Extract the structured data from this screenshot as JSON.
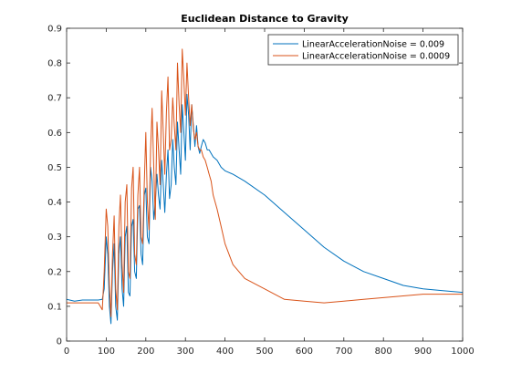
{
  "chart_data": {
    "type": "line",
    "title": "Euclidean Distance to Gravity",
    "xlabel": "",
    "ylabel": "",
    "xlim": [
      0,
      1000
    ],
    "ylim": [
      0,
      0.9
    ],
    "xticks": [
      "0",
      "100",
      "200",
      "300",
      "400",
      "500",
      "600",
      "700",
      "800",
      "900",
      "1000"
    ],
    "yticks": [
      "0",
      "0.1",
      "0.2",
      "0.3",
      "0.4",
      "0.5",
      "0.6",
      "0.7",
      "0.8",
      "0.9"
    ],
    "grid": false,
    "legend_position": "top-right",
    "series": [
      {
        "name": "LinearAccelerationNoise = 0.009",
        "color": "#0072BD",
        "x": [
          0,
          20,
          40,
          60,
          80,
          90,
          95,
          100,
          104,
          108,
          112,
          116,
          120,
          124,
          128,
          132,
          136,
          140,
          144,
          148,
          152,
          156,
          160,
          164,
          168,
          172,
          176,
          180,
          184,
          188,
          192,
          196,
          200,
          204,
          208,
          212,
          216,
          220,
          224,
          228,
          232,
          236,
          240,
          244,
          248,
          252,
          256,
          260,
          264,
          268,
          272,
          276,
          280,
          284,
          288,
          292,
          296,
          300,
          304,
          308,
          312,
          316,
          320,
          324,
          328,
          332,
          336,
          340,
          345,
          350,
          355,
          360,
          365,
          370,
          380,
          390,
          400,
          420,
          450,
          500,
          550,
          600,
          650,
          700,
          750,
          800,
          850,
          900,
          950,
          1000
        ],
        "y": [
          0.12,
          0.115,
          0.118,
          0.118,
          0.118,
          0.12,
          0.15,
          0.3,
          0.25,
          0.1,
          0.05,
          0.2,
          0.28,
          0.1,
          0.06,
          0.25,
          0.3,
          0.15,
          0.1,
          0.3,
          0.33,
          0.14,
          0.13,
          0.33,
          0.35,
          0.2,
          0.18,
          0.38,
          0.39,
          0.25,
          0.22,
          0.42,
          0.44,
          0.3,
          0.28,
          0.5,
          0.46,
          0.35,
          0.4,
          0.48,
          0.42,
          0.38,
          0.52,
          0.45,
          0.37,
          0.48,
          0.55,
          0.41,
          0.45,
          0.58,
          0.5,
          0.45,
          0.63,
          0.55,
          0.48,
          0.68,
          0.6,
          0.52,
          0.71,
          0.65,
          0.55,
          0.68,
          0.62,
          0.56,
          0.62,
          0.56,
          0.54,
          0.56,
          0.58,
          0.57,
          0.55,
          0.55,
          0.54,
          0.53,
          0.52,
          0.5,
          0.49,
          0.48,
          0.46,
          0.42,
          0.37,
          0.32,
          0.27,
          0.23,
          0.2,
          0.18,
          0.16,
          0.15,
          0.145,
          0.14
        ]
      },
      {
        "name": "LinearAccelerationNoise = 0.0009",
        "color": "#D95319",
        "x": [
          0,
          20,
          40,
          60,
          80,
          90,
          95,
          100,
          104,
          108,
          112,
          116,
          120,
          124,
          128,
          132,
          136,
          140,
          144,
          148,
          152,
          156,
          160,
          164,
          168,
          172,
          176,
          180,
          184,
          188,
          192,
          196,
          200,
          204,
          208,
          212,
          216,
          220,
          224,
          228,
          232,
          236,
          240,
          244,
          248,
          252,
          256,
          260,
          264,
          268,
          272,
          276,
          280,
          284,
          288,
          292,
          296,
          300,
          304,
          308,
          312,
          316,
          320,
          324,
          328,
          332,
          336,
          340,
          345,
          350,
          355,
          360,
          365,
          370,
          380,
          390,
          400,
          420,
          450,
          500,
          550,
          600,
          650,
          700,
          750,
          800,
          850,
          900,
          950,
          1000
        ],
        "y": [
          0.11,
          0.11,
          0.11,
          0.11,
          0.11,
          0.09,
          0.2,
          0.38,
          0.33,
          0.16,
          0.07,
          0.25,
          0.36,
          0.15,
          0.09,
          0.33,
          0.42,
          0.22,
          0.14,
          0.4,
          0.45,
          0.2,
          0.18,
          0.44,
          0.5,
          0.25,
          0.22,
          0.42,
          0.5,
          0.3,
          0.28,
          0.45,
          0.6,
          0.4,
          0.32,
          0.55,
          0.67,
          0.5,
          0.35,
          0.63,
          0.55,
          0.45,
          0.72,
          0.6,
          0.48,
          0.66,
          0.76,
          0.55,
          0.58,
          0.7,
          0.62,
          0.55,
          0.8,
          0.68,
          0.6,
          0.84,
          0.75,
          0.65,
          0.8,
          0.7,
          0.62,
          0.68,
          0.61,
          0.58,
          0.6,
          0.56,
          0.55,
          0.55,
          0.53,
          0.52,
          0.5,
          0.48,
          0.46,
          0.42,
          0.38,
          0.33,
          0.28,
          0.22,
          0.18,
          0.15,
          0.12,
          0.115,
          0.11,
          0.115,
          0.12,
          0.125,
          0.13,
          0.135,
          0.135,
          0.135
        ]
      }
    ]
  }
}
